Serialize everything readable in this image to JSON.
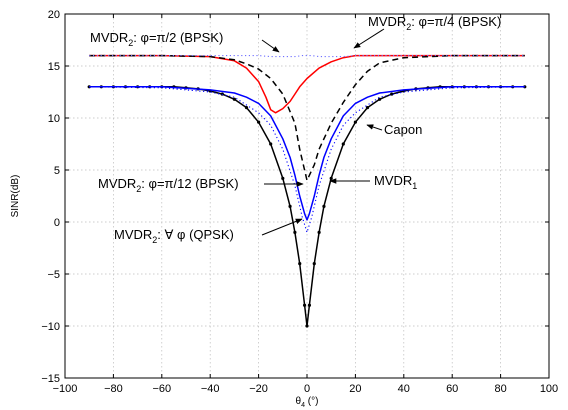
{
  "chart_data": {
    "type": "line",
    "title": "",
    "xlabel": "θ",
    "xlabel_sub": "4",
    "xlabel_unit": " (°)",
    "ylabel": "SINR(dB)",
    "xlim": [
      -100,
      100
    ],
    "ylim": [
      -15,
      20
    ],
    "x_ticks": [
      -100,
      -80,
      -60,
      -40,
      -20,
      0,
      20,
      40,
      60,
      80,
      100
    ],
    "x_tick_labels": [
      "−100",
      "−80",
      "−60",
      "−40",
      "−20",
      "0",
      "20",
      "40",
      "60",
      "80",
      "100"
    ],
    "y_ticks": [
      -15,
      -10,
      -5,
      0,
      5,
      10,
      15,
      20
    ],
    "y_tick_labels": [
      "−15",
      "−10",
      "−5",
      "0",
      "5",
      "10",
      "15",
      "20"
    ],
    "grid": true,
    "legend": "none",
    "series": [
      {
        "color": "#ff0000",
        "style": "solid",
        "marker": "none",
        "x": [
          -90,
          -60,
          -40,
          -30,
          -25,
          -20,
          -17,
          -15,
          -13,
          -10,
          -7,
          -5,
          -3,
          0,
          5,
          10,
          15,
          20,
          25,
          30,
          40,
          60,
          90
        ],
        "y": [
          16,
          16,
          15.9,
          15.5,
          14.8,
          13.5,
          12.0,
          10.8,
          10.5,
          10.9,
          11.6,
          12.3,
          13.0,
          13.8,
          14.8,
          15.4,
          15.8,
          16,
          16,
          16,
          16,
          16,
          16
        ]
      },
      {
        "color": "#000000",
        "style": "dashed",
        "marker": "none",
        "x": [
          -90,
          -60,
          -40,
          -30,
          -25,
          -20,
          -15,
          -10,
          -5,
          -3,
          0,
          3,
          5,
          10,
          15,
          20,
          25,
          30,
          40,
          60,
          90
        ],
        "y": [
          16,
          16,
          15.9,
          15.6,
          15.2,
          14.7,
          13.8,
          12.3,
          9.5,
          7.0,
          4.0,
          5.5,
          7.0,
          9.5,
          11.5,
          13.2,
          14.5,
          15.3,
          15.8,
          16,
          16
        ]
      },
      {
        "color": "#7070ff",
        "style": "dotted",
        "marker": "none",
        "x": [
          -90,
          -60,
          -40,
          -30,
          -20,
          -15,
          -10,
          -5,
          -2,
          0,
          2,
          5,
          10,
          15,
          20,
          25,
          30,
          40,
          60,
          90
        ],
        "y": [
          16,
          16,
          16,
          16,
          16,
          15.9,
          15.9,
          15.9,
          16,
          16,
          16,
          15.9,
          15.9,
          15.9,
          16,
          16,
          16,
          16,
          16,
          16
        ]
      },
      {
        "color": "#000000",
        "style": "solid",
        "marker": "dot",
        "x": [
          -90,
          -85,
          -80,
          -75,
          -70,
          -65,
          -60,
          -55,
          -50,
          -45,
          -40,
          -35,
          -30,
          -25,
          -20,
          -15,
          -10,
          -7,
          -5,
          -3,
          -1,
          0,
          1,
          3,
          5,
          7,
          10,
          15,
          20,
          25,
          30,
          35,
          40,
          45,
          50,
          55,
          60,
          65,
          70,
          75,
          80,
          85,
          90
        ],
        "y": [
          13,
          13,
          13,
          13,
          13,
          13,
          13,
          13,
          12.9,
          12.8,
          12.6,
          12.3,
          11.8,
          11.0,
          9.6,
          7.5,
          4.2,
          1.5,
          -1.0,
          -4.0,
          -8.0,
          -10,
          -8.0,
          -4.0,
          -1.0,
          1.5,
          4.2,
          7.5,
          9.6,
          11.0,
          11.8,
          12.3,
          12.6,
          12.8,
          12.9,
          13,
          13,
          13,
          13,
          13,
          13,
          13,
          13
        ]
      },
      {
        "color": "#0000ff",
        "style": "solid",
        "marker": "none",
        "x": [
          -90,
          -60,
          -40,
          -30,
          -25,
          -20,
          -15,
          -10,
          -7,
          -5,
          -3,
          -1,
          0,
          1,
          3,
          5,
          7,
          10,
          15,
          20,
          25,
          30,
          40,
          60,
          90
        ],
        "y": [
          13,
          13,
          12.7,
          12.4,
          12.0,
          11.4,
          10.2,
          8.0,
          6.2,
          4.5,
          2.5,
          0.8,
          0.2,
          0.8,
          2.5,
          4.5,
          6.2,
          8.0,
          10.2,
          11.4,
          12.0,
          12.4,
          12.7,
          13,
          13
        ]
      },
      {
        "color": "#0000ff",
        "style": "dotted",
        "marker": "none",
        "x": [
          -90,
          -60,
          -40,
          -30,
          -20,
          -15,
          -10,
          -5,
          -2,
          0,
          2,
          5,
          10,
          15,
          20,
          30,
          40,
          60,
          90
        ],
        "y": [
          13,
          12.9,
          12.5,
          12.0,
          10.5,
          9.3,
          7.0,
          3.5,
          0.5,
          -1.0,
          0.5,
          3.5,
          7.0,
          9.3,
          10.5,
          12.0,
          12.5,
          12.9,
          13
        ]
      }
    ],
    "annotations": [
      {
        "name": "ann-pi2",
        "main": "MVDR",
        "sub": "2",
        "rest": ": φ=π/2 (BPSK)"
      },
      {
        "name": "ann-pi4",
        "main": "MVDR",
        "sub": "2",
        "rest": ": φ=π/4 (BPSK)"
      },
      {
        "name": "ann-capon",
        "main": "Capon",
        "sub": "",
        "rest": ""
      },
      {
        "name": "ann-pi12",
        "main": "MVDR",
        "sub": "2",
        "rest": ": φ=π/12 (BPSK)"
      },
      {
        "name": "ann-mvdr1",
        "main": "MVDR",
        "sub": "1",
        "rest": ""
      },
      {
        "name": "ann-qpsk",
        "main": "MVDR",
        "sub": "2",
        "rest": ": ∀ φ (QPSK)"
      }
    ]
  }
}
